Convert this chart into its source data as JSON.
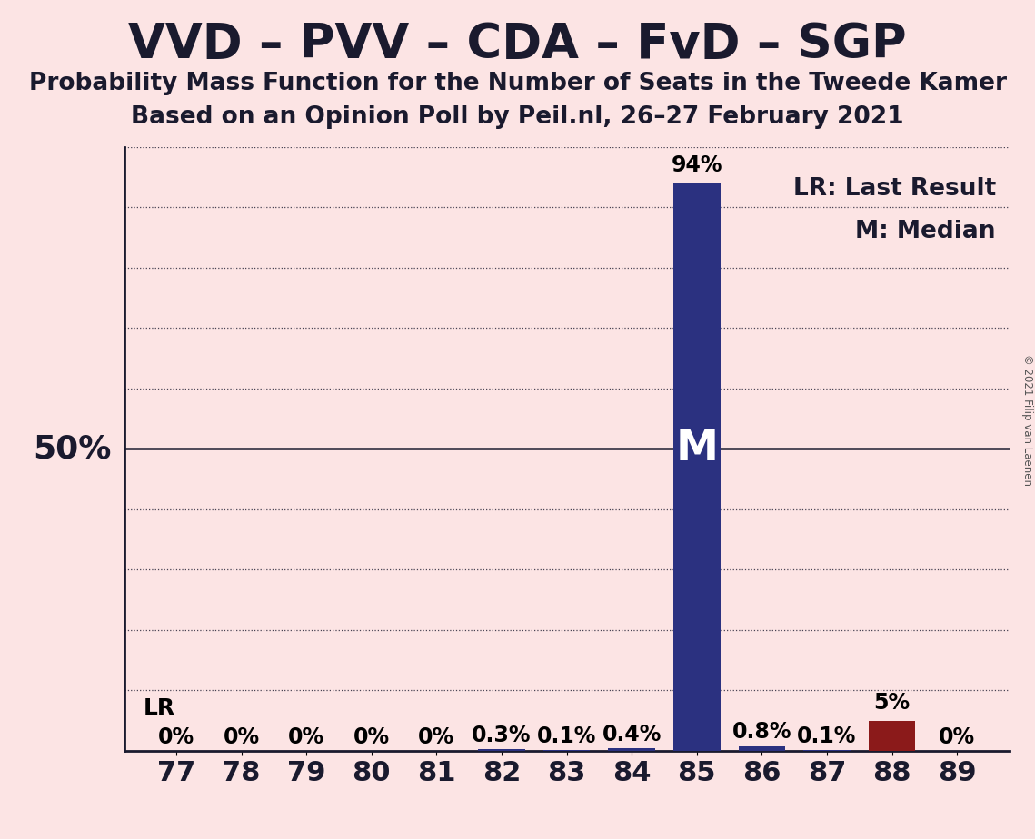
{
  "title": "VVD – PVV – CDA – FvD – SGP",
  "subtitle1": "Probability Mass Function for the Number of Seats in the Tweede Kamer",
  "subtitle2": "Based on an Opinion Poll by Peil.nl, 26–27 February 2021",
  "copyright": "© 2021 Filip van Laenen",
  "background_color": "#fce4e4",
  "categories": [
    77,
    78,
    79,
    80,
    81,
    82,
    83,
    84,
    85,
    86,
    87,
    88,
    89
  ],
  "values": [
    0.0,
    0.0,
    0.0,
    0.0,
    0.0,
    0.3,
    0.1,
    0.4,
    94.0,
    0.8,
    0.1,
    5.0,
    0.0
  ],
  "bar_colors": [
    "#2b3180",
    "#2b3180",
    "#2b3180",
    "#2b3180",
    "#2b3180",
    "#2b3180",
    "#2b3180",
    "#2b3180",
    "#2b3180",
    "#2b3180",
    "#2b3180",
    "#8b1a1a",
    "#2b3180"
  ],
  "bar_labels": [
    "0%",
    "0%",
    "0%",
    "0%",
    "0%",
    "0.3%",
    "0.1%",
    "0.4%",
    "94%",
    "0.8%",
    "0.1%",
    "5%",
    "0%"
  ],
  "median_seat": 85,
  "median_label": "M",
  "lr_label": "LR",
  "legend_lr": "LR: Last Result",
  "legend_m": "M: Median",
  "ylim": [
    0,
    100
  ],
  "ytick_positions": [
    10,
    20,
    30,
    40,
    60,
    70,
    80,
    90,
    100
  ],
  "y50_label": "50%",
  "grid_color": "#1a1a2e",
  "title_fontsize": 38,
  "subtitle_fontsize": 19,
  "bar_label_fontsize": 17,
  "axis_fontsize": 22,
  "legend_fontsize": 19,
  "m_fontsize": 34
}
